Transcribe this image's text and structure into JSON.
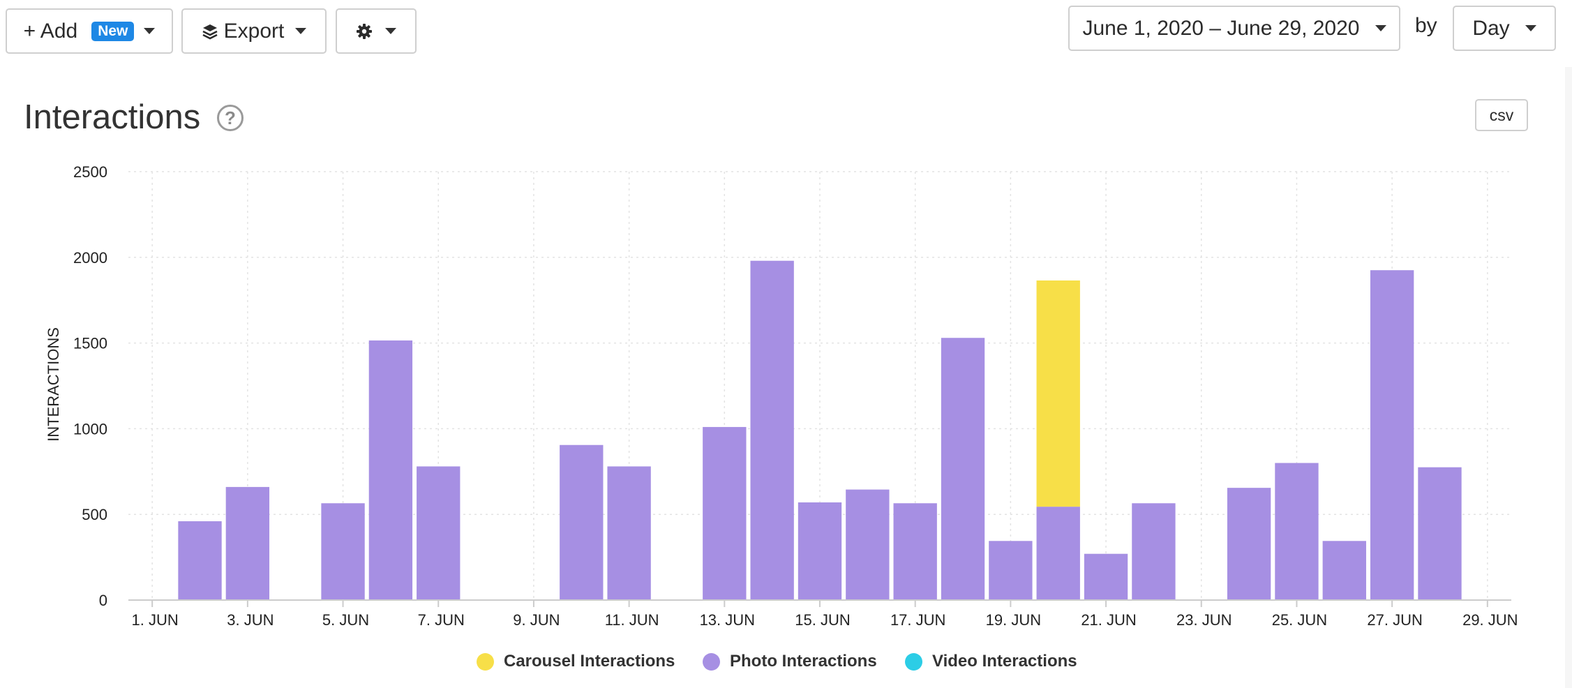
{
  "toolbar": {
    "add_label": "+ Add",
    "new_badge": "New",
    "export_label": "Export",
    "date_range": "June 1, 2020 – June 29, 2020",
    "by_label": "by",
    "granularity": "Day",
    "settings_icon": "gear-icon",
    "export_icon": "layers-icon"
  },
  "panel": {
    "title": "Interactions",
    "help_icon_text": "?",
    "csv_label": "csv"
  },
  "colors": {
    "carousel": "#f7df48",
    "photo": "#a68fe3",
    "video": "#2ccde6",
    "badge": "#1e88e5"
  },
  "chart_data": {
    "type": "bar",
    "stacked": true,
    "ylabel": "INTERACTIONS",
    "ylim": [
      0,
      2500
    ],
    "yticks": [
      0,
      500,
      1000,
      1500,
      2000,
      2500
    ],
    "xtick_labels": [
      "1. JUN",
      "3. JUN",
      "5. JUN",
      "7. JUN",
      "9. JUN",
      "11. JUN",
      "13. JUN",
      "15. JUN",
      "17. JUN",
      "19. JUN",
      "21. JUN",
      "23. JUN",
      "25. JUN",
      "27. JUN",
      "29. JUN"
    ],
    "categories": [
      "2020-06-01",
      "2020-06-02",
      "2020-06-03",
      "2020-06-04",
      "2020-06-05",
      "2020-06-06",
      "2020-06-07",
      "2020-06-08",
      "2020-06-09",
      "2020-06-10",
      "2020-06-11",
      "2020-06-12",
      "2020-06-13",
      "2020-06-14",
      "2020-06-15",
      "2020-06-16",
      "2020-06-17",
      "2020-06-18",
      "2020-06-19",
      "2020-06-20",
      "2020-06-21",
      "2020-06-22",
      "2020-06-23",
      "2020-06-24",
      "2020-06-25",
      "2020-06-26",
      "2020-06-27",
      "2020-06-28",
      "2020-06-29"
    ],
    "grid": true,
    "legend_position": "bottom-center",
    "series": [
      {
        "name": "Photo Interactions",
        "color_key": "photo",
        "values": [
          0,
          460,
          660,
          0,
          565,
          1515,
          780,
          0,
          0,
          905,
          780,
          0,
          1010,
          1980,
          570,
          645,
          565,
          1530,
          345,
          545,
          270,
          565,
          0,
          655,
          800,
          345,
          1925,
          775,
          0
        ]
      },
      {
        "name": "Carousel Interactions",
        "color_key": "carousel",
        "values": [
          0,
          0,
          0,
          0,
          0,
          0,
          0,
          0,
          0,
          0,
          0,
          0,
          0,
          0,
          0,
          0,
          0,
          0,
          0,
          1320,
          0,
          0,
          0,
          0,
          0,
          0,
          0,
          0,
          0
        ]
      },
      {
        "name": "Video Interactions",
        "color_key": "video",
        "values": [
          0,
          0,
          0,
          0,
          0,
          0,
          0,
          0,
          0,
          0,
          0,
          0,
          0,
          0,
          0,
          0,
          0,
          0,
          0,
          0,
          0,
          0,
          0,
          0,
          0,
          0,
          0,
          0,
          0
        ]
      }
    ],
    "legend": [
      "Carousel Interactions",
      "Photo Interactions",
      "Video Interactions"
    ]
  }
}
